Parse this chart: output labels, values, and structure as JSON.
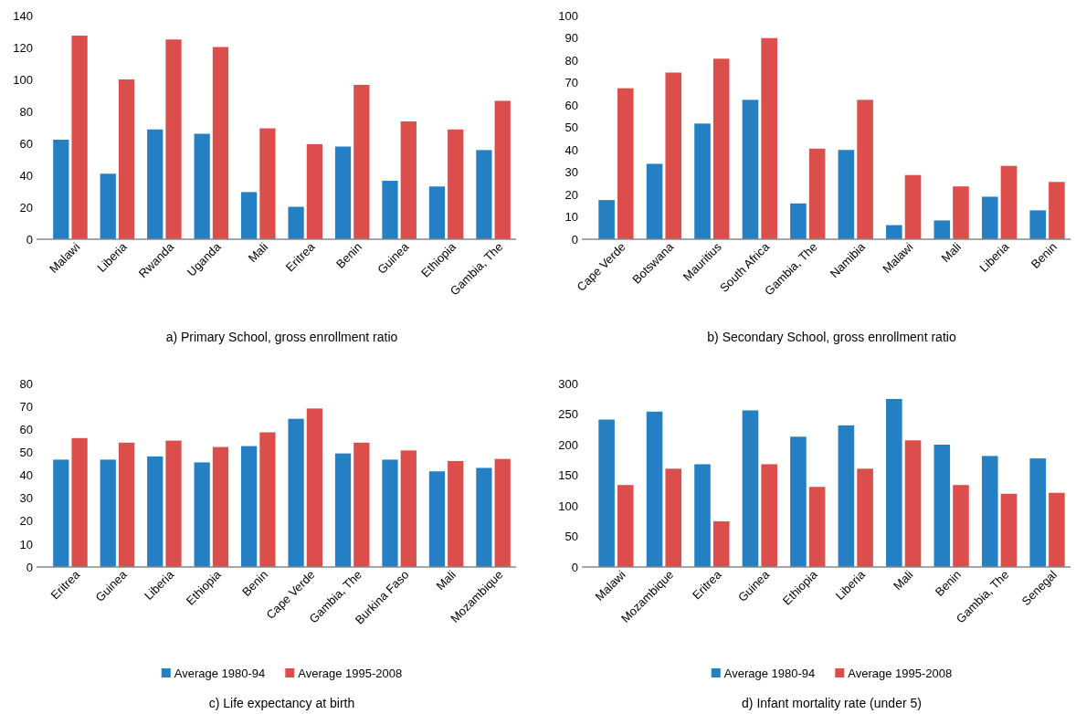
{
  "chart_data": [
    {
      "type": "bar",
      "xlabel": "a) Primary School, gross enrollment ratio",
      "categories": [
        "Malawi",
        "Liberia",
        "Rwanda",
        "Uganda",
        "Mali",
        "Eritrea",
        "Benin",
        "Guinea",
        "Ethiopia",
        "Gambia, The"
      ],
      "ylim": [
        0,
        140
      ],
      "yticks": [
        0,
        20,
        40,
        60,
        80,
        100,
        120,
        140
      ],
      "grid": false,
      "legend": false,
      "series": [
        {
          "color": "#2580c3",
          "values": [
            62.3,
            41,
            68.7,
            66,
            29.5,
            20.3,
            58,
            36.6,
            33,
            55.8
          ]
        },
        {
          "color": "#dc4e4c",
          "values": [
            127.4,
            100,
            125,
            120.3,
            69.4,
            59.5,
            96.6,
            73.7,
            68.7,
            86.6
          ]
        }
      ]
    },
    {
      "type": "bar",
      "xlabel": "b) Secondary School, gross enrollment ratio",
      "categories": [
        "Cape Verde",
        "Botswana",
        "Mauritius",
        "South Africa",
        "Gambia, The",
        "Namibia",
        "Malawi",
        "Mali",
        "Liberia",
        "Benin"
      ],
      "ylim": [
        0,
        100
      ],
      "yticks": [
        0,
        10,
        20,
        30,
        40,
        50,
        60,
        70,
        80,
        90,
        100
      ],
      "grid": false,
      "legend": false,
      "series": [
        {
          "color": "#2580c3",
          "values": [
            17.5,
            33.7,
            51.7,
            62.3,
            16,
            39.9,
            6.3,
            8.4,
            19,
            12.9
          ]
        },
        {
          "color": "#dc4e4c",
          "values": [
            67.5,
            74.5,
            80.7,
            89.9,
            40.5,
            62.3,
            28.7,
            23.6,
            32.8,
            25.6
          ]
        }
      ]
    },
    {
      "type": "bar",
      "xlabel": "c) Life expectancy at birth",
      "categories": [
        "Eritrea",
        "Guinea",
        "Liberia",
        "Ethiopia",
        "Benin",
        "Cape Verde",
        "Gambia, The",
        "Burkina Faso",
        "Mali",
        "Mozambique"
      ],
      "ylim": [
        0,
        80
      ],
      "yticks": [
        0,
        10,
        20,
        30,
        40,
        50,
        60,
        70,
        80
      ],
      "grid": false,
      "legend": "bottom",
      "series": [
        {
          "name": "Average 1980-94",
          "color": "#2580c3",
          "values": [
            46.8,
            46.8,
            48.2,
            45.6,
            52.7,
            64.6,
            49.5,
            46.8,
            41.7,
            43.2
          ]
        },
        {
          "name": "Average 1995-2008",
          "color": "#dc4e4c",
          "values": [
            56.2,
            54.2,
            55.1,
            52.3,
            58.7,
            69.1,
            54.2,
            50.8,
            46.2,
            47.1
          ]
        }
      ]
    },
    {
      "type": "bar",
      "xlabel": "d) Infant mortality rate (under 5)",
      "categories": [
        "Malawi",
        "Mozambique",
        "Eritrea",
        "Guinea",
        "Ethiopia",
        "Liberia",
        "Mali",
        "Benin",
        "Gambia, The",
        "Senegal"
      ],
      "ylim": [
        0,
        300
      ],
      "yticks": [
        0,
        50,
        100,
        150,
        200,
        250,
        300
      ],
      "grid": false,
      "legend": "bottom",
      "series": [
        {
          "name": "Average 1980-94",
          "color": "#2580c3",
          "values": [
            241,
            254,
            168,
            256,
            213,
            231.5,
            274.7,
            200,
            181.5,
            177.5
          ]
        },
        {
          "name": "Average 1995-2008",
          "color": "#dc4e4c",
          "values": [
            134,
            160.7,
            74.7,
            168,
            131,
            160.7,
            207,
            134,
            119.7,
            121.3
          ]
        }
      ]
    }
  ]
}
